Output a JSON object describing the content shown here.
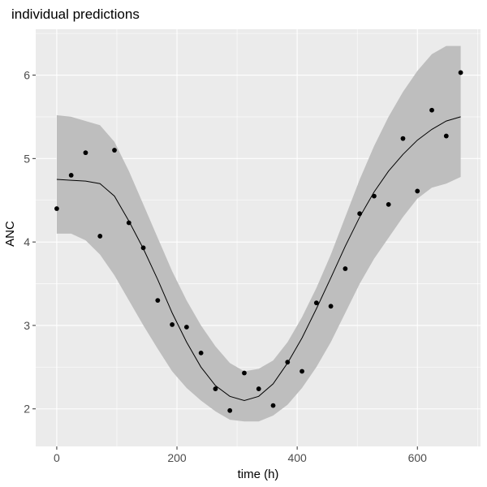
{
  "chart_data": {
    "type": "line",
    "title": "individual predictions",
    "xlabel": "time (h)",
    "ylabel": "ANC",
    "xlim": [
      -35,
      705
    ],
    "ylim": [
      1.55,
      6.55
    ],
    "x_ticks": [
      0,
      200,
      400,
      600
    ],
    "x_tick_labels": [
      "0",
      "200",
      "400",
      "600"
    ],
    "y_ticks": [
      2,
      3,
      4,
      5,
      6
    ],
    "y_tick_labels": [
      "2",
      "3",
      "4",
      "5",
      "6"
    ],
    "grid": true,
    "legend": "none",
    "colors": {
      "panel": "#ebebeb",
      "grid": "#ffffff",
      "ribbon": "#bebebe",
      "line": "#000000",
      "points": "#000000",
      "tick_text": "#4d4d4d"
    },
    "series": [
      {
        "type": "ribbon",
        "x": [
          0,
          24,
          48,
          72,
          96,
          120,
          144,
          168,
          192,
          216,
          240,
          264,
          288,
          312,
          336,
          360,
          384,
          408,
          432,
          456,
          480,
          504,
          528,
          552,
          576,
          600,
          624,
          648,
          672
        ],
        "lower": [
          4.1,
          4.1,
          4.02,
          3.85,
          3.6,
          3.3,
          3.0,
          2.72,
          2.45,
          2.25,
          2.1,
          1.97,
          1.87,
          1.85,
          1.85,
          1.92,
          2.05,
          2.25,
          2.5,
          2.8,
          3.15,
          3.5,
          3.8,
          4.05,
          4.3,
          4.52,
          4.65,
          4.7,
          4.78
        ],
        "upper": [
          5.52,
          5.5,
          5.45,
          5.4,
          5.2,
          4.85,
          4.45,
          4.05,
          3.65,
          3.3,
          3.0,
          2.75,
          2.55,
          2.45,
          2.48,
          2.58,
          2.8,
          3.1,
          3.45,
          3.85,
          4.3,
          4.75,
          5.15,
          5.5,
          5.8,
          6.05,
          6.25,
          6.35,
          6.35
        ]
      },
      {
        "type": "line",
        "x": [
          0,
          24,
          48,
          72,
          96,
          120,
          144,
          168,
          192,
          216,
          240,
          264,
          288,
          312,
          336,
          360,
          384,
          408,
          432,
          456,
          480,
          504,
          528,
          552,
          576,
          600,
          624,
          648,
          672
        ],
        "y": [
          4.75,
          4.74,
          4.73,
          4.7,
          4.55,
          4.25,
          3.92,
          3.55,
          3.15,
          2.8,
          2.5,
          2.28,
          2.15,
          2.1,
          2.15,
          2.3,
          2.55,
          2.85,
          3.2,
          3.57,
          3.95,
          4.3,
          4.6,
          4.85,
          5.05,
          5.22,
          5.35,
          5.45,
          5.5
        ]
      },
      {
        "type": "scatter",
        "x": [
          0,
          24,
          48,
          72,
          96,
          120,
          144,
          168,
          192,
          216,
          240,
          264,
          288,
          312,
          336,
          360,
          384,
          408,
          432,
          456,
          480,
          504,
          528,
          552,
          576,
          600,
          624,
          648,
          672
        ],
        "y": [
          4.4,
          4.8,
          5.07,
          4.07,
          5.1,
          4.23,
          3.93,
          3.3,
          3.01,
          2.98,
          2.67,
          2.24,
          1.98,
          2.43,
          2.24,
          2.04,
          2.56,
          2.45,
          3.27,
          3.23,
          3.68,
          4.34,
          4.55,
          4.45,
          5.24,
          4.61,
          5.58,
          5.27,
          6.03
        ]
      }
    ]
  }
}
